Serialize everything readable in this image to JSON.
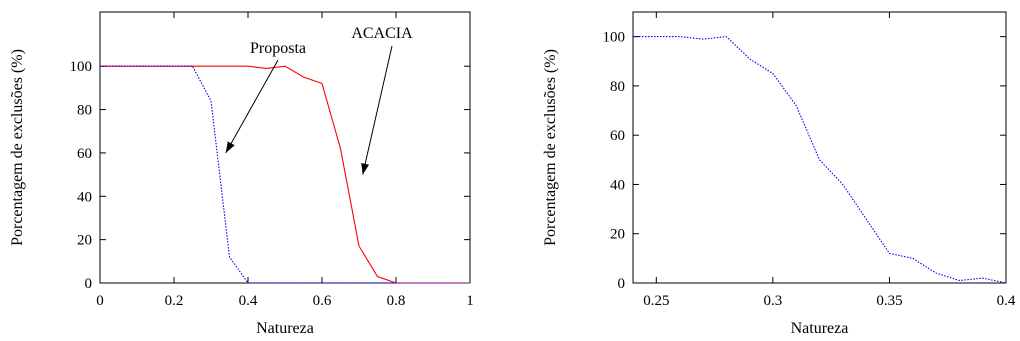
{
  "chart_data": [
    {
      "type": "line",
      "title": "",
      "xlabel": "Natureza",
      "ylabel": "Porcentagem de exclusões (%)",
      "xlim": [
        0,
        1
      ],
      "ylim": [
        0,
        125
      ],
      "xticks": [
        0,
        0.2,
        0.4,
        0.6,
        0.8,
        1
      ],
      "xtick_labels": [
        "0",
        "0.2",
        "0.4",
        "0.6",
        "0.8",
        "1"
      ],
      "yticks": [
        0,
        20,
        40,
        60,
        80,
        100
      ],
      "ytick_labels": [
        "0",
        "20",
        "40",
        "60",
        "80",
        "100"
      ],
      "grid": false,
      "series": [
        {
          "name": "ACACIA",
          "color": "#ff0000",
          "style": "solid",
          "x": [
            0,
            0.05,
            0.1,
            0.15,
            0.2,
            0.25,
            0.3,
            0.35,
            0.4,
            0.45,
            0.5,
            0.55,
            0.6,
            0.65,
            0.7,
            0.75,
            0.8,
            0.85,
            0.9,
            0.95,
            1
          ],
          "y": [
            100,
            100,
            100,
            100,
            100,
            100,
            100,
            100,
            100,
            99,
            100,
            95,
            92,
            62,
            17,
            3,
            0,
            0,
            0,
            0,
            0
          ]
        },
        {
          "name": "Proposta",
          "color": "#0000ff",
          "style": "dotted",
          "x": [
            0,
            0.05,
            0.1,
            0.15,
            0.2,
            0.25,
            0.3,
            0.35,
            0.4,
            0.45,
            0.5,
            0.55,
            0.6,
            0.65,
            0.7,
            0.75,
            0.8,
            0.85,
            0.9,
            0.95,
            1
          ],
          "y": [
            100,
            100,
            100,
            100,
            100,
            100,
            84,
            12,
            0,
            0,
            0,
            0,
            0,
            0,
            0,
            0,
            0,
            0,
            0,
            0,
            0
          ]
        }
      ],
      "annotations": [
        {
          "text": "Proposta",
          "arrow_to": [
            0.34,
            60
          ]
        },
        {
          "text": "ACACIA",
          "arrow_to": [
            0.71,
            50
          ]
        }
      ]
    },
    {
      "type": "line",
      "title": "",
      "xlabel": "Natureza",
      "ylabel": "Porcentagem de exclusões (%)",
      "xlim": [
        0.24,
        0.4
      ],
      "ylim": [
        0,
        110
      ],
      "xticks": [
        0.25,
        0.3,
        0.35,
        0.4
      ],
      "xtick_labels": [
        "0.25",
        "0.3",
        "0.35",
        "0.4"
      ],
      "yticks": [
        0,
        20,
        40,
        60,
        80,
        100
      ],
      "ytick_labels": [
        "0",
        "20",
        "40",
        "60",
        "80",
        "100"
      ],
      "grid": false,
      "series": [
        {
          "color": "#0000ff",
          "style": "dotted",
          "x": [
            0.24,
            0.25,
            0.26,
            0.27,
            0.28,
            0.29,
            0.3,
            0.31,
            0.32,
            0.33,
            0.34,
            0.35,
            0.36,
            0.37,
            0.38,
            0.39,
            0.4
          ],
          "y": [
            100,
            100,
            100,
            99,
            100,
            91,
            85,
            72,
            50,
            40,
            26,
            12,
            10,
            4,
            1,
            2,
            0
          ]
        }
      ]
    }
  ]
}
